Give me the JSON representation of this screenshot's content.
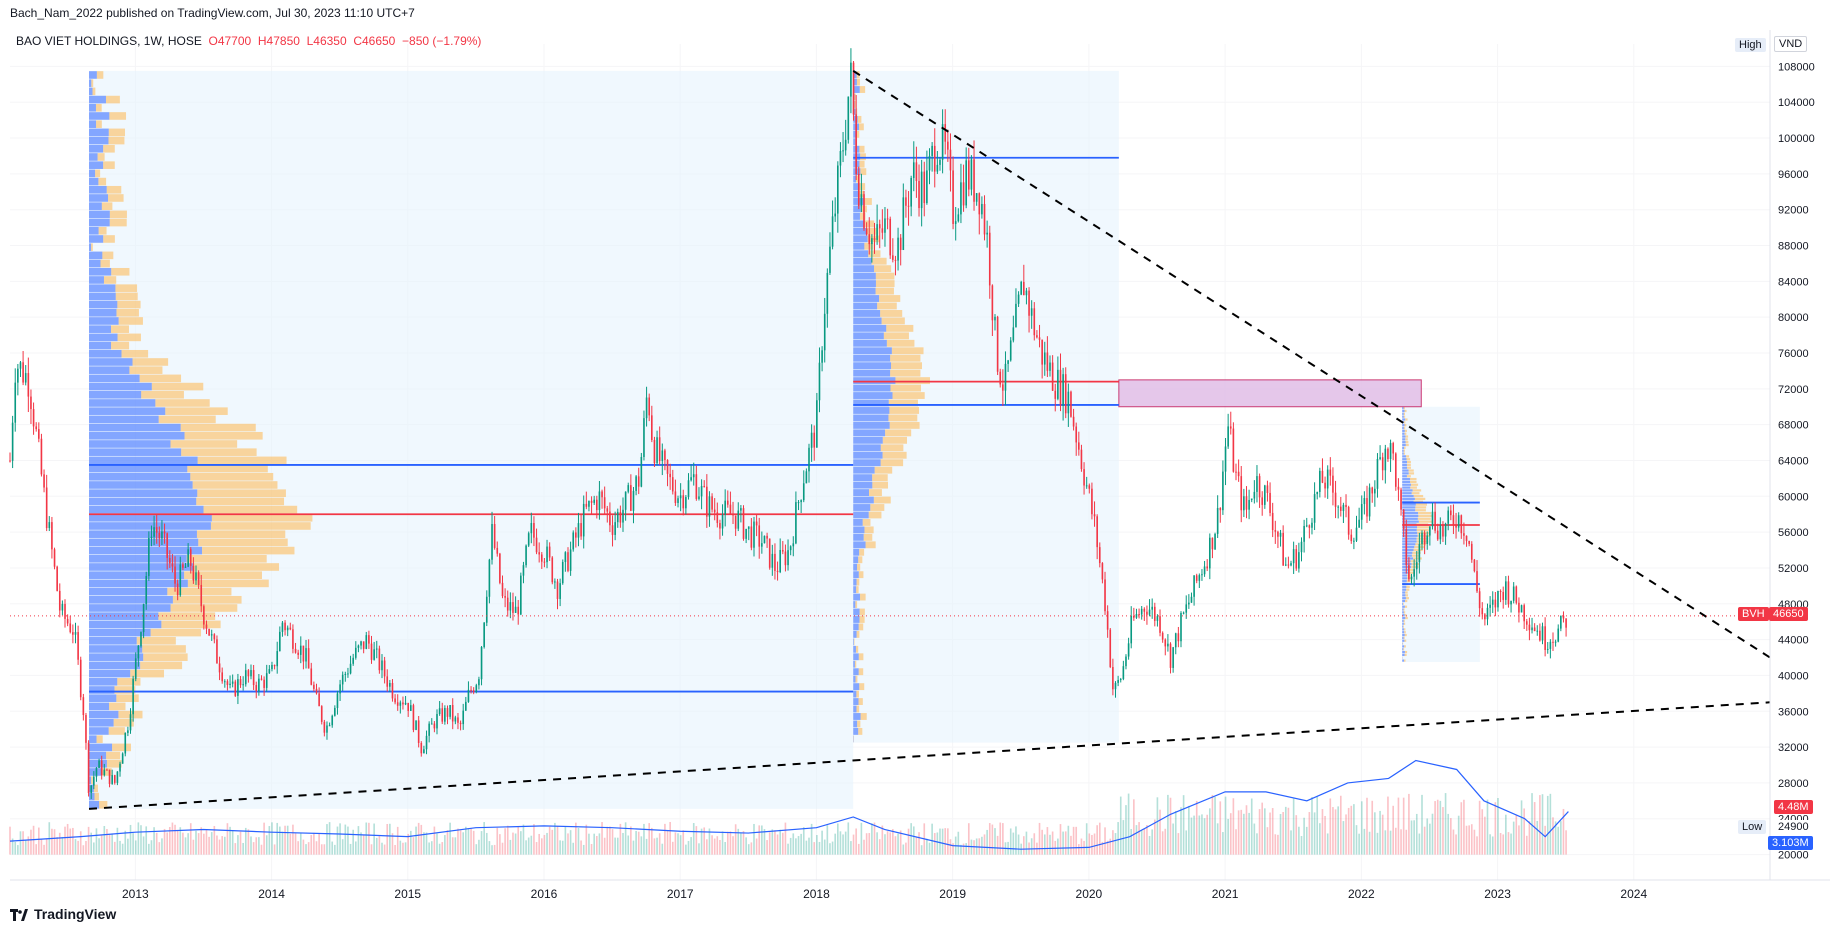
{
  "publisher": "Bach_Nam_2022 published on TradingView.com, Jul 30, 2023 11:10 UTC+7",
  "legend": {
    "symbol": "BAO VIET HOLDINGS, 1W, HOSE",
    "open": "O47700",
    "high": "H47850",
    "low": "L46350",
    "close": "C46650",
    "change": "−850 (−1.79%)"
  },
  "badges": {
    "high": "High",
    "currency": "VND",
    "low": "Low",
    "ticker": "BVH",
    "last_price": "46650",
    "volume_last": "4.48M",
    "low_value": "24900",
    "volume_ma": "3.103M"
  },
  "brand": "TradingView",
  "colors": {
    "up": "#089981",
    "down": "#f23645",
    "profile_up": "#2962ff",
    "profile_down": "#ffb74d",
    "range_bg": "#e3f2fd",
    "zone": "#e1bee7"
  },
  "chart_data": {
    "type": "candlestick",
    "interval": "1W",
    "y_ticks": [
      20000,
      24000,
      28000,
      32000,
      36000,
      40000,
      44000,
      48000,
      52000,
      56000,
      60000,
      64000,
      68000,
      72000,
      76000,
      80000,
      84000,
      88000,
      92000,
      96000,
      100000,
      104000,
      108000
    ],
    "x_ticks": [
      "2013",
      "2014",
      "2015",
      "2016",
      "2017",
      "2018",
      "2019",
      "2020",
      "2021",
      "2022",
      "2023",
      "2024"
    ],
    "ylim": [
      18500,
      110500
    ],
    "xlim": [
      2012.08,
      2025.0
    ],
    "price_path": [
      [
        2012.08,
        64000
      ],
      [
        2012.12,
        75000
      ],
      [
        2012.22,
        73000
      ],
      [
        2012.33,
        60000
      ],
      [
        2012.45,
        47000
      ],
      [
        2012.55,
        45000
      ],
      [
        2012.62,
        36000
      ],
      [
        2012.66,
        27000
      ],
      [
        2012.72,
        30000
      ],
      [
        2012.85,
        28000
      ],
      [
        2012.95,
        35000
      ],
      [
        2013.05,
        47000
      ],
      [
        2013.12,
        57000
      ],
      [
        2013.2,
        55000
      ],
      [
        2013.3,
        50000
      ],
      [
        2013.4,
        53000
      ],
      [
        2013.5,
        47000
      ],
      [
        2013.6,
        42000
      ],
      [
        2013.7,
        38000
      ],
      [
        2013.8,
        40000
      ],
      [
        2013.9,
        39000
      ],
      [
        2014.0,
        40000
      ],
      [
        2014.08,
        46000
      ],
      [
        2014.17,
        44000
      ],
      [
        2014.25,
        42000
      ],
      [
        2014.33,
        37000
      ],
      [
        2014.4,
        34000
      ],
      [
        2014.5,
        39000
      ],
      [
        2014.6,
        42000
      ],
      [
        2014.7,
        44000
      ],
      [
        2014.8,
        41000
      ],
      [
        2014.9,
        38000
      ],
      [
        2015.0,
        37000
      ],
      [
        2015.1,
        32000
      ],
      [
        2015.2,
        35000
      ],
      [
        2015.3,
        36000
      ],
      [
        2015.38,
        34000
      ],
      [
        2015.45,
        38000
      ],
      [
        2015.52,
        40000
      ],
      [
        2015.58,
        50000
      ],
      [
        2015.62,
        56000
      ],
      [
        2015.7,
        48000
      ],
      [
        2015.8,
        47000
      ],
      [
        2015.9,
        56000
      ],
      [
        2016.0,
        54000
      ],
      [
        2016.1,
        50000
      ],
      [
        2016.2,
        54000
      ],
      [
        2016.3,
        58000
      ],
      [
        2016.4,
        60000
      ],
      [
        2016.5,
        57000
      ],
      [
        2016.6,
        59000
      ],
      [
        2016.7,
        62000
      ],
      [
        2016.76,
        72000
      ],
      [
        2016.8,
        66000
      ],
      [
        2016.9,
        62000
      ],
      [
        2017.0,
        60000
      ],
      [
        2017.1,
        62000
      ],
      [
        2017.2,
        59000
      ],
      [
        2017.3,
        58000
      ],
      [
        2017.4,
        58000
      ],
      [
        2017.5,
        56000
      ],
      [
        2017.6,
        55000
      ],
      [
        2017.7,
        52000
      ],
      [
        2017.8,
        54000
      ],
      [
        2017.9,
        62000
      ],
      [
        2018.0,
        68000
      ],
      [
        2018.05,
        80000
      ],
      [
        2018.12,
        90000
      ],
      [
        2018.2,
        100000
      ],
      [
        2018.25,
        107000
      ],
      [
        2018.3,
        96000
      ],
      [
        2018.35,
        92000
      ],
      [
        2018.42,
        88000
      ],
      [
        2018.5,
        90000
      ],
      [
        2018.6,
        88000
      ],
      [
        2018.7,
        96000
      ],
      [
        2018.8,
        94000
      ],
      [
        2018.88,
        100000
      ],
      [
        2018.95,
        98000
      ],
      [
        2019.0,
        92000
      ],
      [
        2019.1,
        96000
      ],
      [
        2019.2,
        94000
      ],
      [
        2019.26,
        88000
      ],
      [
        2019.32,
        76000
      ],
      [
        2019.38,
        72000
      ],
      [
        2019.45,
        78000
      ],
      [
        2019.52,
        84000
      ],
      [
        2019.58,
        80000
      ],
      [
        2019.65,
        76000
      ],
      [
        2019.75,
        73000
      ],
      [
        2019.85,
        71000
      ],
      [
        2019.92,
        66000
      ],
      [
        2020.0,
        60000
      ],
      [
        2020.05,
        56000
      ],
      [
        2020.12,
        48000
      ],
      [
        2020.18,
        38000
      ],
      [
        2020.24,
        40000
      ],
      [
        2020.32,
        46000
      ],
      [
        2020.42,
        48000
      ],
      [
        2020.52,
        46000
      ],
      [
        2020.6,
        42000
      ],
      [
        2020.68,
        46000
      ],
      [
        2020.78,
        50000
      ],
      [
        2020.88,
        54000
      ],
      [
        2020.95,
        58000
      ],
      [
        2021.02,
        68000
      ],
      [
        2021.08,
        62000
      ],
      [
        2021.15,
        58000
      ],
      [
        2021.22,
        62000
      ],
      [
        2021.3,
        60000
      ],
      [
        2021.38,
        56000
      ],
      [
        2021.45,
        52000
      ],
      [
        2021.55,
        54000
      ],
      [
        2021.62,
        58000
      ],
      [
        2021.72,
        62000
      ],
      [
        2021.82,
        60000
      ],
      [
        2021.92,
        56000
      ],
      [
        2022.02,
        58000
      ],
      [
        2022.1,
        62000
      ],
      [
        2022.18,
        66000
      ],
      [
        2022.24,
        64000
      ],
      [
        2022.3,
        56000
      ],
      [
        2022.36,
        50000
      ],
      [
        2022.42,
        54000
      ],
      [
        2022.5,
        58000
      ],
      [
        2022.6,
        56000
      ],
      [
        2022.7,
        58000
      ],
      [
        2022.78,
        56000
      ],
      [
        2022.84,
        50000
      ],
      [
        2022.9,
        46000
      ],
      [
        2022.98,
        48000
      ],
      [
        2023.05,
        50000
      ],
      [
        2023.15,
        48000
      ],
      [
        2023.25,
        46000
      ],
      [
        2023.35,
        44000
      ],
      [
        2023.45,
        45000
      ],
      [
        2023.52,
        46650
      ]
    ],
    "horizontal_levels": [
      {
        "x_range": [
          2012.66,
          2018.27
        ],
        "price": 63500,
        "color": "#2962ff"
      },
      {
        "x_range": [
          2012.66,
          2018.27
        ],
        "price": 58000,
        "color": "#f23645"
      },
      {
        "x_range": [
          2012.66,
          2018.27
        ],
        "price": 38200,
        "color": "#2962ff"
      },
      {
        "x_range": [
          2018.27,
          2020.22
        ],
        "price": 97800,
        "color": "#2962ff"
      },
      {
        "x_range": [
          2018.27,
          2020.22
        ],
        "price": 72800,
        "color": "#f23645"
      },
      {
        "x_range": [
          2018.27,
          2020.22
        ],
        "price": 70200,
        "color": "#2962ff"
      },
      {
        "x_range": [
          2022.3,
          2022.87
        ],
        "price": 59300,
        "color": "#2962ff"
      },
      {
        "x_range": [
          2022.3,
          2022.87
        ],
        "price": 56800,
        "color": "#f23645"
      },
      {
        "x_range": [
          2022.3,
          2022.87
        ],
        "price": 50200,
        "color": "#2962ff"
      }
    ],
    "trendlines": [
      {
        "from": [
          2018.27,
          107500
        ],
        "to": [
          2025.0,
          42000
        ],
        "style": "dashed"
      },
      {
        "from": [
          2012.66,
          25100
        ],
        "to": [
          2025.0,
          37000
        ],
        "style": "dashed"
      }
    ],
    "range_boxes": [
      {
        "x_range": [
          2012.66,
          2018.27
        ],
        "y_range": [
          25100,
          107500
        ]
      },
      {
        "x_range": [
          2018.27,
          2020.22
        ],
        "y_range": [
          32500,
          107500
        ]
      },
      {
        "x_range": [
          2022.3,
          2022.87
        ],
        "y_range": [
          41500,
          70000
        ]
      }
    ],
    "zone": {
      "x_range": [
        2020.22,
        2022.44
      ],
      "y_range": [
        70000,
        73000
      ]
    },
    "last_price": 46650,
    "volume_ma_path": [
      [
        2012.08,
        21500
      ],
      [
        2012.6,
        22000
      ],
      [
        2013.0,
        22500
      ],
      [
        2013.5,
        22800
      ],
      [
        2014.0,
        22500
      ],
      [
        2014.5,
        22300
      ],
      [
        2015.0,
        22000
      ],
      [
        2015.5,
        23000
      ],
      [
        2016.0,
        23200
      ],
      [
        2016.5,
        23000
      ],
      [
        2017.0,
        22600
      ],
      [
        2017.5,
        22400
      ],
      [
        2018.0,
        23000
      ],
      [
        2018.27,
        24200
      ],
      [
        2018.5,
        22800
      ],
      [
        2019.0,
        21000
      ],
      [
        2019.5,
        20600
      ],
      [
        2020.0,
        20800
      ],
      [
        2020.3,
        22000
      ],
      [
        2020.6,
        24500
      ],
      [
        2021.0,
        27000
      ],
      [
        2021.3,
        27000
      ],
      [
        2021.6,
        26000
      ],
      [
        2021.9,
        28000
      ],
      [
        2022.2,
        28500
      ],
      [
        2022.4,
        30500
      ],
      [
        2022.7,
        29500
      ],
      [
        2022.9,
        26000
      ],
      [
        2023.2,
        24000
      ],
      [
        2023.35,
        22000
      ],
      [
        2023.52,
        24800
      ]
    ]
  }
}
